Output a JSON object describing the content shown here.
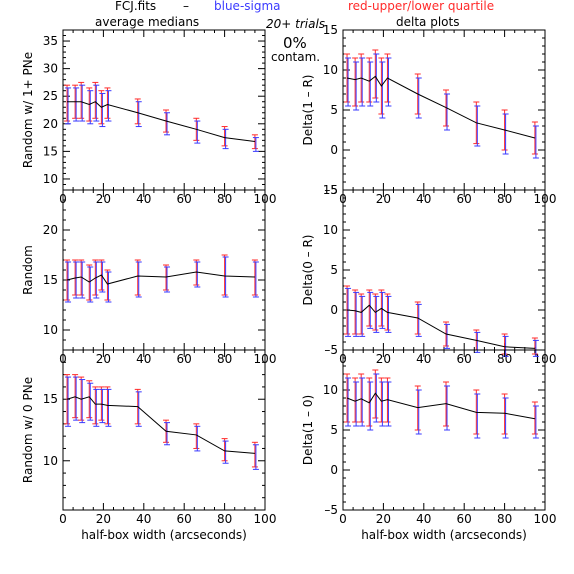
{
  "header": {
    "file": "FCJ.fits",
    "dash": "–",
    "blue_label": "blue-sigma",
    "red_label": "red-upper/lower quartile",
    "trials": "20+ trials",
    "contam_pct": "0%",
    "contam_label": "contam.",
    "left_title": "average medians",
    "right_title": "delta plots"
  },
  "colors": {
    "blue": "#3a3aff",
    "red": "#ff2a2a",
    "line": "#000000"
  },
  "chart_data": [
    {
      "type": "line",
      "ylabel": "Random w/ 1+ PNe",
      "xlabel": "",
      "xlim": [
        0,
        100
      ],
      "ylim": [
        8,
        37
      ],
      "yticks": [
        10,
        15,
        20,
        25,
        30,
        35
      ],
      "xticks": [
        0,
        20,
        40,
        60,
        80,
        100
      ],
      "series": [
        {
          "x": [
            2,
            6,
            9,
            13,
            16,
            19,
            22,
            37,
            51,
            66,
            80,
            95
          ],
          "y": [
            24,
            24,
            24,
            23.5,
            24,
            23,
            23.5,
            22,
            20.5,
            19,
            17.5,
            16.8
          ],
          "q_lo": [
            20.5,
            21,
            21,
            20.5,
            21,
            20,
            21,
            20,
            18.5,
            17,
            16,
            15.5
          ],
          "q_hi": [
            27,
            27,
            27.5,
            26.5,
            27.5,
            26,
            26.5,
            24.5,
            22.5,
            21,
            19.5,
            18
          ],
          "s_lo": [
            20,
            20.5,
            20.5,
            20,
            20.5,
            19.5,
            20.5,
            19.5,
            18,
            16.5,
            15.5,
            15
          ],
          "s_hi": [
            26.5,
            26.5,
            27,
            26,
            27,
            25.5,
            26,
            24,
            22,
            20.5,
            19,
            17.5
          ]
        }
      ]
    },
    {
      "type": "line",
      "ylabel": "Delta(1 – R)",
      "xlabel": "",
      "xlim": [
        0,
        100
      ],
      "ylim": [
        -5,
        15
      ],
      "yticks": [
        -5,
        0,
        5,
        10,
        15
      ],
      "xticks": [
        0,
        20,
        40,
        60,
        80,
        100
      ],
      "series": [
        {
          "x": [
            2,
            6,
            9,
            13,
            16,
            19,
            22,
            37,
            51,
            66,
            80,
            95
          ],
          "y": [
            9,
            8.8,
            9,
            8.6,
            9.2,
            8,
            9,
            7,
            5.3,
            3.4,
            2.5,
            1.5
          ],
          "q_lo": [
            6,
            5.5,
            6,
            6,
            6.5,
            4.5,
            6,
            4.5,
            3,
            0.8,
            0,
            -0.5
          ],
          "q_hi": [
            12,
            11.5,
            12,
            11.5,
            12.5,
            11.5,
            12,
            9.5,
            7.5,
            6,
            5,
            3.5
          ],
          "s_lo": [
            5.5,
            5,
            5.5,
            5.5,
            6,
            4,
            5.5,
            4,
            2.5,
            0.5,
            -0.5,
            -1
          ],
          "s_hi": [
            11.5,
            11,
            11.5,
            11,
            12,
            11,
            11.5,
            9,
            7,
            5.5,
            4.5,
            3
          ]
        }
      ]
    },
    {
      "type": "line",
      "ylabel": "Random",
      "xlabel": "",
      "xlim": [
        0,
        100
      ],
      "ylim": [
        8,
        24
      ],
      "yticks": [
        10,
        15,
        20
      ],
      "xticks": [
        0,
        20,
        40,
        60,
        80,
        100
      ],
      "series": [
        {
          "x": [
            2,
            6,
            9,
            13,
            16,
            19,
            22,
            37,
            51,
            66,
            80,
            95
          ],
          "y": [
            15,
            15.2,
            15.3,
            14.8,
            15.2,
            15.5,
            14.6,
            15.4,
            15.3,
            15.8,
            15.4,
            15.3
          ],
          "q_lo": [
            13,
            13.5,
            13.5,
            13,
            13.5,
            14,
            13,
            13.5,
            14,
            14.5,
            13.5,
            13.5
          ],
          "q_hi": [
            17,
            17,
            17,
            16.5,
            17,
            17,
            16,
            17,
            16.5,
            17,
            17.5,
            17
          ],
          "s_lo": [
            12.8,
            13.2,
            13.2,
            12.8,
            13.2,
            13.8,
            12.8,
            13.3,
            13.8,
            14.3,
            13.3,
            13.3
          ],
          "s_hi": [
            16.8,
            16.8,
            16.8,
            16.3,
            16.8,
            16.8,
            15.8,
            16.8,
            16.3,
            16.8,
            17.3,
            16.8
          ]
        }
      ]
    },
    {
      "type": "line",
      "ylabel": "Delta(0 – R)",
      "xlabel": "",
      "xlim": [
        0,
        100
      ],
      "ylim": [
        -5,
        15
      ],
      "yticks": [
        -5,
        0,
        5,
        10,
        15
      ],
      "xticks": [
        0,
        20,
        40,
        60,
        80,
        100
      ],
      "series": [
        {
          "x": [
            2,
            6,
            9,
            13,
            16,
            19,
            22,
            37,
            51,
            66,
            80,
            95
          ],
          "y": [
            0,
            -0.1,
            -0.3,
            0.6,
            -0.3,
            0.2,
            -0.3,
            -1,
            -3,
            -3.8,
            -4.6,
            -4.8
          ],
          "q_lo": [
            -3,
            -3,
            -3,
            -2,
            -2.5,
            -2,
            -2.5,
            -3,
            -4.5,
            -5,
            -5.5,
            -5.5
          ],
          "q_hi": [
            3,
            2.5,
            2,
            2.5,
            2,
            2.5,
            2,
            1,
            -1.5,
            -2.5,
            -3,
            -3.5
          ],
          "s_lo": [
            -3.3,
            -3.3,
            -3.3,
            -2.3,
            -2.8,
            -2.3,
            -2.8,
            -3.3,
            -4.8,
            -5.3,
            -5.8,
            -5.8
          ],
          "s_hi": [
            2.7,
            2.2,
            1.7,
            2.2,
            1.7,
            2.2,
            1.7,
            0.7,
            -1.8,
            -2.8,
            -3.3,
            -3.8
          ]
        }
      ]
    },
    {
      "type": "line",
      "ylabel": "Random w/ 0 PNe",
      "xlabel": "half-box width (arcseconds)",
      "xlim": [
        0,
        100
      ],
      "ylim": [
        6,
        19
      ],
      "yticks": [
        10,
        15
      ],
      "xticks": [
        0,
        20,
        40,
        60,
        80,
        100
      ],
      "series": [
        {
          "x": [
            2,
            6,
            9,
            13,
            16,
            19,
            22,
            37,
            51,
            66,
            80,
            95
          ],
          "y": [
            15,
            15.2,
            15,
            15.2,
            14.6,
            14.6,
            14.5,
            14.4,
            12.4,
            12.1,
            10.8,
            10.6
          ],
          "q_lo": [
            13,
            13.5,
            13.3,
            13.5,
            13,
            13.3,
            13,
            13,
            11.5,
            11,
            10,
            9.5
          ],
          "q_hi": [
            17,
            17,
            16.8,
            16.5,
            16,
            16,
            16,
            15.8,
            13.3,
            13,
            11.8,
            11.5
          ],
          "s_lo": [
            12.8,
            13.3,
            13.1,
            13.3,
            12.8,
            13.1,
            12.8,
            12.8,
            11.3,
            10.8,
            9.8,
            9.3
          ],
          "s_hi": [
            16.8,
            16.8,
            16.6,
            16.3,
            15.8,
            15.8,
            15.8,
            15.6,
            13.1,
            12.8,
            11.6,
            11.3
          ]
        }
      ]
    },
    {
      "type": "line",
      "ylabel": "Delta(1 – 0)",
      "xlabel": "half-box width (arcseconds)",
      "xlim": [
        0,
        100
      ],
      "ylim": [
        -5,
        15
      ],
      "yticks": [
        -5,
        0,
        5,
        10
      ],
      "xticks": [
        0,
        20,
        40,
        60,
        80,
        100
      ],
      "series": [
        {
          "x": [
            2,
            6,
            9,
            13,
            16,
            19,
            22,
            37,
            51,
            66,
            80,
            95
          ],
          "y": [
            9,
            8.6,
            8.9,
            8.4,
            9.6,
            8.6,
            8.8,
            7.8,
            8.3,
            7.2,
            7.1,
            6.4
          ],
          "q_lo": [
            6,
            6,
            6,
            5.5,
            6.5,
            6,
            6,
            5,
            5.5,
            4.5,
            4.5,
            4.5
          ],
          "q_hi": [
            12,
            11.5,
            12,
            11.5,
            12.5,
            11.5,
            11.5,
            10.5,
            11,
            10,
            9.5,
            8.5
          ],
          "s_lo": [
            5.5,
            5.5,
            5.5,
            5,
            6,
            5.5,
            5.5,
            4.5,
            5,
            4,
            4,
            4
          ],
          "s_hi": [
            11.5,
            11,
            11.5,
            11,
            12,
            11,
            11,
            10,
            10.5,
            9.5,
            9,
            8
          ]
        }
      ]
    }
  ]
}
